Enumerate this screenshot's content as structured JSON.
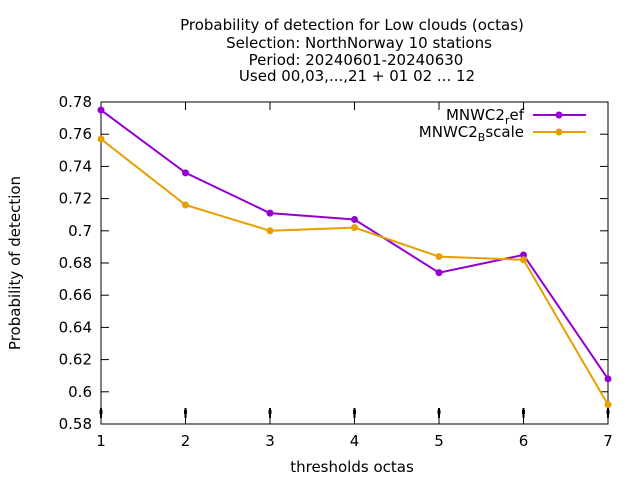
{
  "chart_data": {
    "type": "line",
    "title_lines": [
      "Probability of detection  for Low clouds (octas)",
      "Selection: NorthNorway     10 stations",
      "Period: 20240601-20240630",
      "Used 00,03,...,21 + 01 02 ... 12"
    ],
    "xlabel": "thresholds octas",
    "ylabel": "Probability of detection",
    "x": [
      1,
      2,
      3,
      4,
      5,
      6,
      7
    ],
    "xlim": [
      1,
      7
    ],
    "ylim": [
      0.58,
      0.78
    ],
    "xticks": [
      "1",
      "2",
      "3",
      "4",
      "5",
      "6",
      "7"
    ],
    "yticks": [
      "0.58",
      "0.6",
      "0.62",
      "0.64",
      "0.66",
      "0.68",
      "0.7",
      "0.72",
      "0.74",
      "0.76",
      "0.78"
    ],
    "grid": false,
    "legend_position": "top-right",
    "series": [
      {
        "name": "MNWC2_ref",
        "label_main": "MNWC2",
        "label_sub": "r",
        "label_rest": "ef",
        "color": "#9400d3",
        "values": [
          0.775,
          0.736,
          0.711,
          0.707,
          0.674,
          0.685,
          0.608
        ]
      },
      {
        "name": "MNWC2_Bscale",
        "label_main": "MNWC2",
        "label_sub": "B",
        "label_rest": "scale",
        "color": "#e69f00",
        "values": [
          0.757,
          0.716,
          0.7,
          0.702,
          0.684,
          0.682,
          0.592
        ]
      }
    ]
  }
}
